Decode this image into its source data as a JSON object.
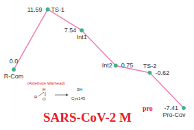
{
  "chart_data": {
    "type": "line",
    "title": "SARS-CoV-2 M",
    "categories": [
      "R-Com",
      "TS-1",
      "Int1",
      "Int2",
      "TS-2",
      "Pro-Cov"
    ],
    "values": [
      0.0,
      11.59,
      7.54,
      0.75,
      -0.62,
      -7.41
    ],
    "value_labels": [
      "0.0",
      "11.59",
      "7.54",
      "0.75",
      "-0.62",
      "-7.41"
    ],
    "data_labels": true,
    "color": "#f07cb5",
    "marker": "circle",
    "ylim": [
      -9,
      13
    ],
    "tick_labels": false,
    "grid": false,
    "annotations": [
      "pro",
      "(Aldehyde Warhead)",
      "H",
      "R",
      "O",
      "SH",
      "Cys145"
    ]
  }
}
